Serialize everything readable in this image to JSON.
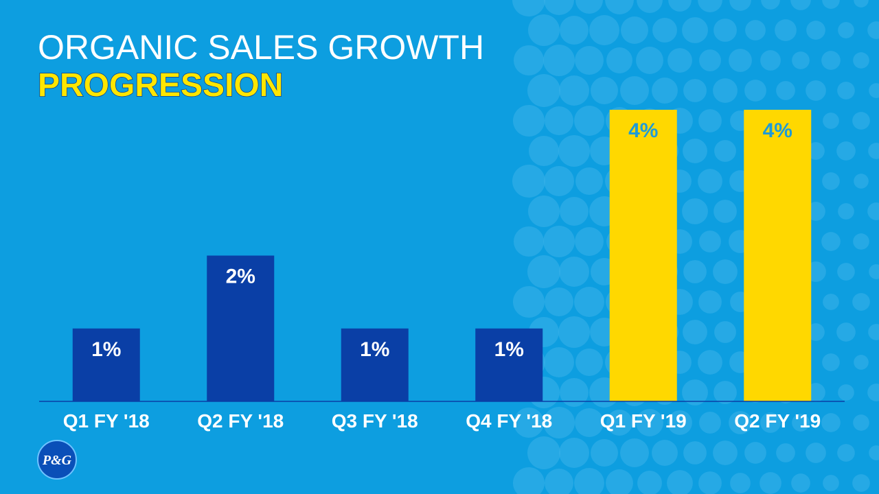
{
  "chart_data": {
    "type": "bar",
    "title": "ORGANIC SALES GROWTH",
    "subtitle": "PROGRESSION",
    "categories": [
      "Q1 FY '18",
      "Q2 FY '18",
      "Q3 FY '18",
      "Q4 FY '18",
      "Q1 FY '19",
      "Q2 FY '19"
    ],
    "values": [
      1,
      2,
      1,
      1,
      4,
      4
    ],
    "value_labels": [
      "1%",
      "2%",
      "1%",
      "1%",
      "4%",
      "4%"
    ],
    "colors": [
      "#0a3fa6",
      "#0a3fa6",
      "#0a3fa6",
      "#0a3fa6",
      "#ffd800",
      "#ffd800"
    ],
    "value_label_colors": [
      "#ffffff",
      "#ffffff",
      "#ffffff",
      "#ffffff",
      "#1e9bd7",
      "#1e9bd7"
    ],
    "ylim": [
      0,
      4
    ],
    "logo": "P&G"
  }
}
